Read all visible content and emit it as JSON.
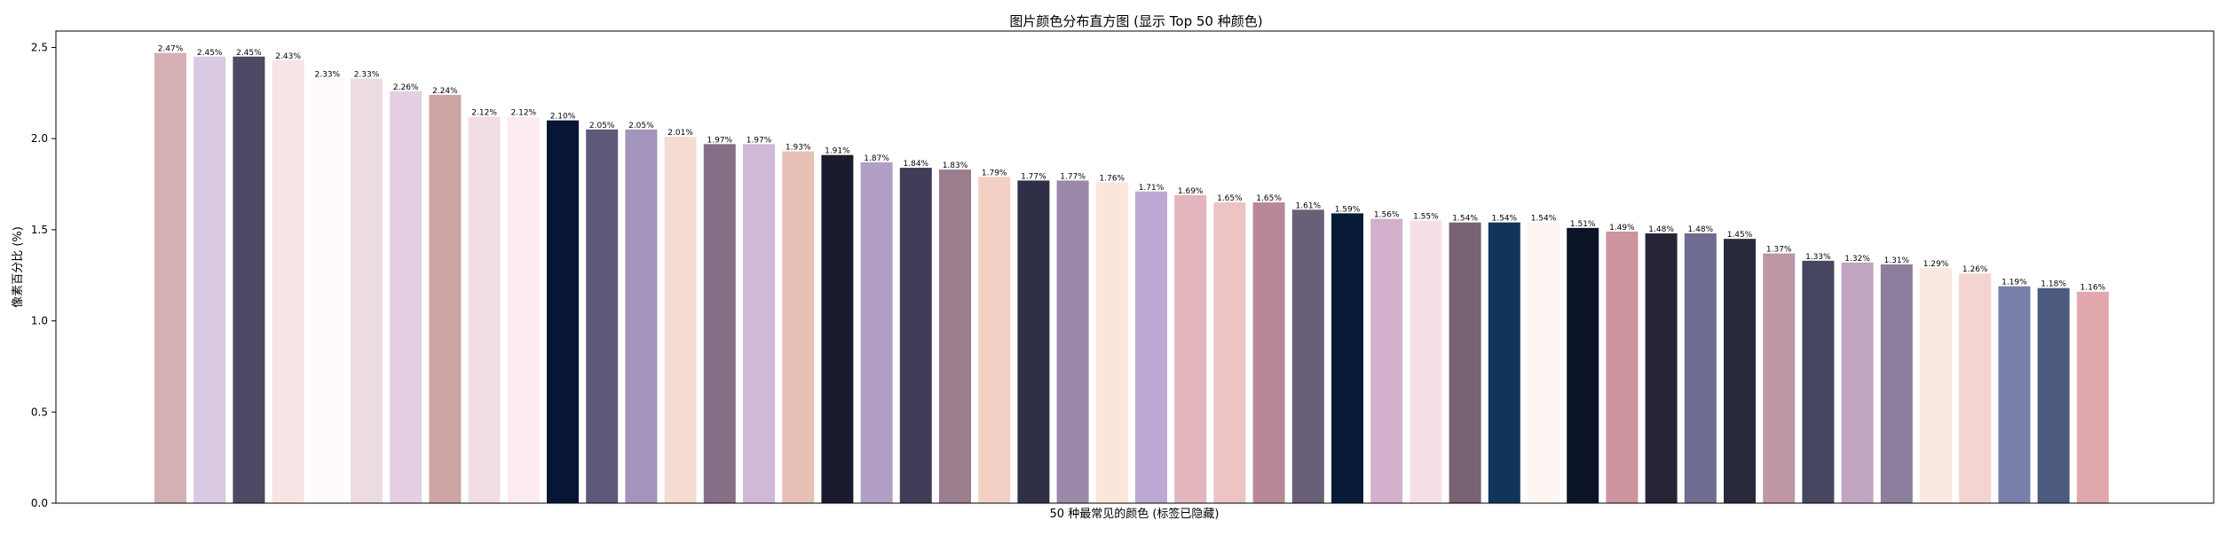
{
  "chart_data": {
    "type": "bar",
    "title": "图片颜色分布直方图 (显示 Top 50 种颜色)",
    "xlabel": "50 种最常见的颜色 (标签已隐藏)",
    "ylabel": "像素百分比 (%)",
    "ylim": [
      0,
      2.59
    ],
    "yticks": [
      0.0,
      0.5,
      1.0,
      1.5,
      2.0,
      2.5
    ],
    "ytick_labels": [
      "0.0",
      "0.5",
      "1.0",
      "1.5",
      "2.0",
      "2.5"
    ],
    "grid": false,
    "values": [
      2.47,
      2.45,
      2.45,
      2.43,
      2.33,
      2.33,
      2.26,
      2.24,
      2.12,
      2.12,
      2.1,
      2.05,
      2.05,
      2.01,
      1.97,
      1.97,
      1.93,
      1.91,
      1.87,
      1.84,
      1.83,
      1.79,
      1.77,
      1.77,
      1.76,
      1.71,
      1.69,
      1.65,
      1.65,
      1.61,
      1.59,
      1.56,
      1.55,
      1.54,
      1.54,
      1.54,
      1.51,
      1.49,
      1.48,
      1.48,
      1.45,
      1.37,
      1.33,
      1.32,
      1.31,
      1.29,
      1.26,
      1.19,
      1.18,
      1.16
    ],
    "value_labels": [
      "2.47%",
      "2.45%",
      "2.45%",
      "2.43%",
      "2.33%",
      "2.33%",
      "2.26%",
      "2.24%",
      "2.12%",
      "2.12%",
      "2.10%",
      "2.05%",
      "2.05%",
      "2.01%",
      "1.97%",
      "1.97%",
      "1.93%",
      "1.91%",
      "1.87%",
      "1.84%",
      "1.83%",
      "1.79%",
      "1.77%",
      "1.77%",
      "1.76%",
      "1.71%",
      "1.69%",
      "1.65%",
      "1.65%",
      "1.61%",
      "1.59%",
      "1.56%",
      "1.55%",
      "1.54%",
      "1.54%",
      "1.54%",
      "1.51%",
      "1.49%",
      "1.48%",
      "1.48%",
      "1.45%",
      "1.37%",
      "1.33%",
      "1.32%",
      "1.31%",
      "1.29%",
      "1.26%",
      "1.19%",
      "1.18%",
      "1.16%"
    ],
    "colors": [
      "#d4afb4",
      "#dac9e2",
      "#4d4863",
      "#f8e4e4",
      "#fefafc",
      "#eddbe4",
      "#e4d0e2",
      "#cda4a4",
      "#f2dde2",
      "#fcebee",
      "#061634",
      "#5c5a78",
      "#a394bc",
      "#f6dbd3",
      "#856f86",
      "#d0b8d8",
      "#e8c0b6",
      "#1a1c2e",
      "#b19fc5",
      "#433c58",
      "#9a7e8e",
      "#f3d0c4",
      "#2f3048",
      "#9c88a8",
      "#fce6dc",
      "#bca8d2",
      "#e2b6bc",
      "#ecc4c4",
      "#b88898",
      "#6a5f78",
      "#071a38",
      "#d2b0cc",
      "#f6e0e6",
      "#786274",
      "#12345a",
      "#fef6f2",
      "#0a1426",
      "#cd95a0",
      "#272438",
      "#6e6c92",
      "#282a3c",
      "#be96a6",
      "#464660",
      "#c0a4c0",
      "#8c7e9c",
      "#fce8e2",
      "#f4d4d0",
      "#7880aa",
      "#4b5a7e",
      "#e0a8ac"
    ]
  }
}
